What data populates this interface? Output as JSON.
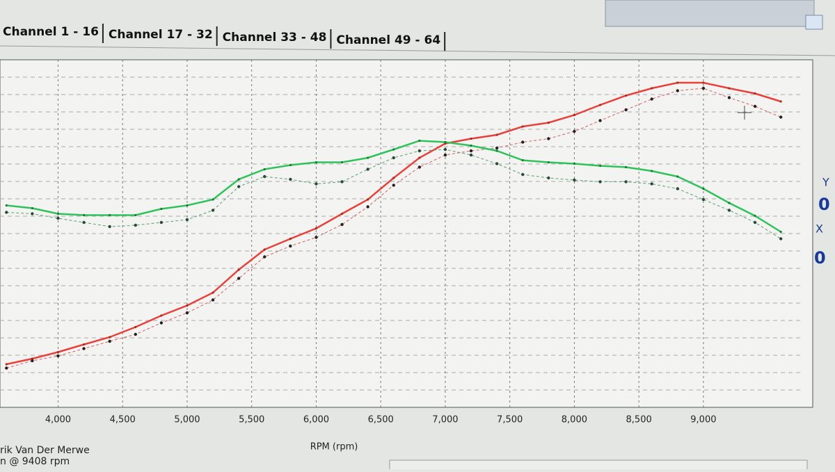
{
  "tabs": [
    "Channel 1 - 16",
    "Channel 17 - 32",
    "Channel 33 - 48",
    "Channel 49 - 64"
  ],
  "footer": {
    "operator": "rik Van Der Merwe",
    "peak": "n @ 9408 rpm"
  },
  "side_panel": {
    "y_label": "Y",
    "y_value": "0",
    "x_label": "X",
    "x_value": "0"
  },
  "chart_data": {
    "type": "line",
    "x_label": "RPM (rpm)",
    "x": [
      3600,
      3800,
      4000,
      4200,
      4400,
      4600,
      4800,
      5000,
      5200,
      5400,
      5600,
      5800,
      6000,
      6200,
      6400,
      6600,
      6800,
      7000,
      7200,
      7400,
      7600,
      7800,
      8000,
      8200,
      8400,
      8600,
      8800,
      9000,
      9200,
      9400,
      9600
    ],
    "xlim": [
      3550,
      9750
    ],
    "xticks": [
      {
        "value": 4000,
        "label": "4,000"
      },
      {
        "value": 4500,
        "label": "4,500"
      },
      {
        "value": 5000,
        "label": "5,000"
      },
      {
        "value": 5500,
        "label": "5,500"
      },
      {
        "value": 6000,
        "label": "6,000"
      },
      {
        "value": 6500,
        "label": "6,500"
      },
      {
        "value": 7000,
        "label": "7,000"
      },
      {
        "value": 7500,
        "label": "7,500"
      },
      {
        "value": 8000,
        "label": "8,000"
      },
      {
        "value": 8500,
        "label": "8,500"
      },
      {
        "value": 9000,
        "label": "9,000"
      }
    ],
    "ylim": [
      0,
      100
    ],
    "grid": true,
    "series": [
      {
        "color": "#e8403a",
        "line_style": "solid",
        "marker_color": "#a03020",
        "values": [
          12.4,
          14.0,
          15.9,
          18.1,
          20.2,
          23.1,
          26.4,
          29.3,
          33.0,
          39.6,
          45.4,
          48.5,
          51.5,
          55.7,
          59.8,
          66.0,
          71.8,
          75.9,
          77.3,
          78.4,
          80.8,
          81.9,
          84.1,
          87.0,
          89.7,
          91.8,
          93.4,
          93.4,
          91.8,
          90.3,
          88.0
        ]
      },
      {
        "color": "#d06060",
        "line_style": "dashed",
        "marker_color": "#222222",
        "values": [
          11.3,
          13.4,
          14.8,
          16.9,
          19.0,
          21.0,
          24.3,
          27.2,
          30.9,
          37.1,
          43.3,
          46.4,
          48.9,
          52.6,
          57.7,
          63.9,
          69.1,
          72.6,
          73.8,
          74.6,
          76.3,
          77.3,
          79.4,
          82.5,
          85.6,
          88.7,
          91.1,
          91.8,
          89.1,
          86.6,
          83.5
        ]
      },
      {
        "color": "#2fc25a",
        "line_style": "solid",
        "marker_color": "#1e7a3a",
        "values": [
          58.1,
          57.3,
          55.7,
          55.3,
          55.3,
          55.3,
          57.1,
          58.1,
          59.8,
          65.6,
          68.5,
          69.7,
          70.5,
          70.5,
          71.8,
          74.2,
          76.7,
          76.3,
          75.3,
          73.8,
          71.1,
          70.5,
          70.1,
          69.5,
          69.1,
          68.0,
          66.4,
          62.9,
          58.8,
          55.1,
          50.5
        ]
      },
      {
        "color": "#5aa070",
        "line_style": "dashed",
        "marker_color": "#2a4a35",
        "values": [
          56.1,
          55.7,
          54.4,
          53.2,
          52.0,
          52.4,
          53.2,
          54.0,
          56.7,
          63.5,
          66.4,
          65.6,
          64.3,
          64.9,
          68.5,
          71.8,
          73.8,
          74.2,
          72.6,
          70.1,
          67.0,
          66.0,
          65.4,
          64.9,
          64.9,
          64.3,
          62.9,
          59.8,
          56.7,
          53.2,
          48.5
        ]
      }
    ]
  }
}
